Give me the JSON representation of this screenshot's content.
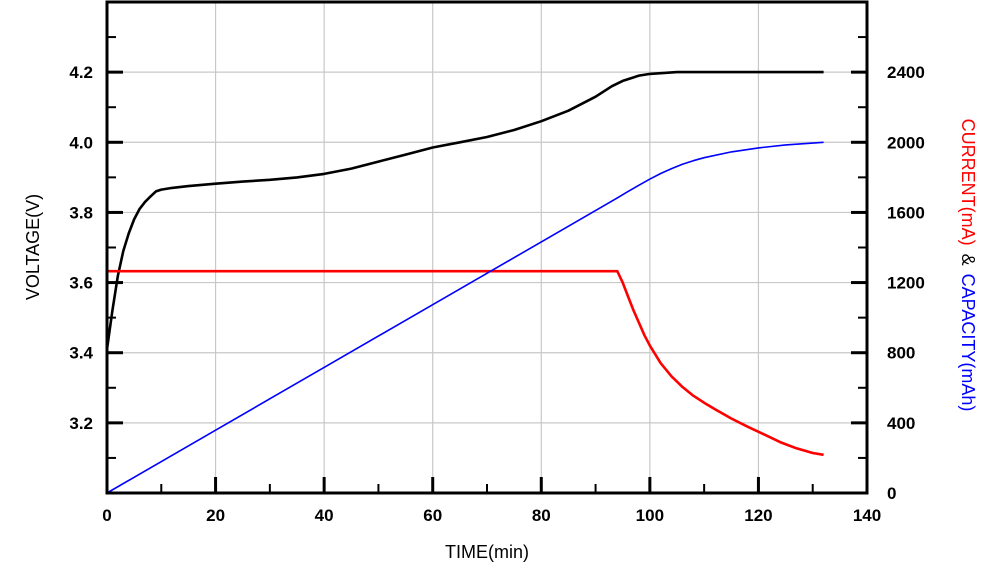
{
  "chart_data": {
    "type": "line",
    "title": "",
    "xlabel": "TIME(min)",
    "ylabel_left": "VOLTAGE(V)",
    "ylabel_right": {
      "current": "CURRENT(mA)",
      "separator": "&",
      "capacity": "CAPACITY(mAh)"
    },
    "xlim": [
      0,
      140
    ],
    "ylim_left": [
      3.0,
      4.4
    ],
    "ylim_right": [
      0,
      2800
    ],
    "x_ticks": [
      0,
      20,
      40,
      60,
      80,
      100,
      120,
      140
    ],
    "x_tick_labels": [
      "0",
      "20",
      "40",
      "60",
      "80",
      "100",
      "120",
      "140"
    ],
    "y_left_ticks": [
      3.2,
      3.4,
      3.6,
      3.8,
      4.0,
      4.2
    ],
    "y_left_tick_labels": [
      "3.2",
      "3.4",
      "3.6",
      "3.8",
      "4.0",
      "4.2"
    ],
    "y_right_ticks": [
      0,
      400,
      800,
      1200,
      1600,
      2000,
      2400
    ],
    "y_right_tick_labels": [
      "0",
      "400",
      "800",
      "1200",
      "1600",
      "2000",
      "2400"
    ],
    "grid": true,
    "series": [
      {
        "axis": "left",
        "color": "#000000",
        "x": [
          0,
          1,
          2,
          3,
          4,
          5,
          6,
          7,
          8,
          9,
          10,
          12,
          15,
          20,
          25,
          30,
          35,
          40,
          45,
          50,
          55,
          60,
          65,
          70,
          75,
          80,
          85,
          90,
          93,
          95,
          98,
          100,
          105,
          110,
          120,
          132
        ],
        "y": [
          3.41,
          3.52,
          3.62,
          3.69,
          3.74,
          3.78,
          3.81,
          3.83,
          3.845,
          3.86,
          3.865,
          3.87,
          3.875,
          3.882,
          3.888,
          3.893,
          3.9,
          3.91,
          3.925,
          3.945,
          3.965,
          3.985,
          4.0,
          4.015,
          4.035,
          4.06,
          4.09,
          4.13,
          4.16,
          4.175,
          4.19,
          4.195,
          4.2,
          4.2,
          4.2,
          4.2
        ]
      },
      {
        "axis": "right",
        "color": "#ff0000",
        "x": [
          0,
          20,
          40,
          60,
          80,
          90,
          94,
          95,
          96,
          97,
          98,
          99,
          100,
          102,
          104,
          106,
          108,
          110,
          112,
          115,
          118,
          121,
          124,
          127,
          130,
          132
        ],
        "y": [
          1265,
          1265,
          1265,
          1265,
          1265,
          1265,
          1265,
          1200,
          1120,
          1040,
          970,
          900,
          840,
          740,
          665,
          605,
          555,
          515,
          478,
          425,
          378,
          335,
          290,
          255,
          228,
          218
        ]
      },
      {
        "axis": "right",
        "color": "#0000ff",
        "x": [
          0,
          20,
          40,
          60,
          80,
          94,
          96,
          98,
          100,
          102,
          104,
          106,
          108,
          110,
          115,
          120,
          125,
          132
        ],
        "y": [
          0,
          358,
          716,
          1074,
          1432,
          1683,
          1720,
          1755,
          1790,
          1822,
          1850,
          1875,
          1895,
          1912,
          1945,
          1968,
          1985,
          2000
        ]
      }
    ]
  }
}
